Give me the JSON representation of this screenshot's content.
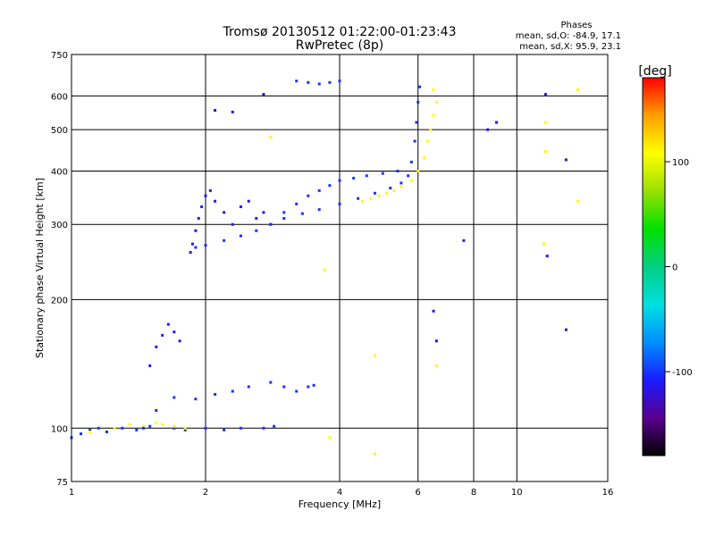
{
  "chart_data": {
    "type": "scatter",
    "title": "Tromsø 20130512 01:22:00-01:23:43",
    "subtitle": "RwPretec (8p)",
    "xlabel": "Frequency [MHz]",
    "ylabel": "Stationary phase Virtual Height [km]",
    "x_scale": "log",
    "y_scale": "log",
    "xlim": [
      1,
      16
    ],
    "ylim": [
      75,
      750
    ],
    "x_ticks": [
      1,
      2,
      4,
      6,
      8,
      10,
      16
    ],
    "x_tick_labels": [
      "1",
      "2",
      "4",
      "6",
      "8",
      "10",
      "16"
    ],
    "y_ticks": [
      75,
      100,
      200,
      300,
      400,
      500,
      600,
      750
    ],
    "y_tick_labels": [
      "75",
      "100",
      "200",
      "300",
      "400",
      "500",
      "600",
      "750"
    ],
    "grid": true,
    "phase_stats": {
      "heading": "Phases",
      "o_line": "mean, sd,O: -84.9, 17.1",
      "x_line": "mean, sd,X:  95.9, 23.1"
    },
    "colorbar": {
      "label": "[deg]",
      "range": [
        -180,
        180
      ],
      "ticks": [
        100,
        0,
        -100
      ],
      "tick_labels": [
        "100",
        "0",
        "-100"
      ],
      "colormap": [
        "#000000",
        "#5a0090",
        "#1a1aff",
        "#0090ff",
        "#00e0e0",
        "#00d080",
        "#00e000",
        "#9ae000",
        "#ffff00",
        "#ffa000",
        "#ff0000"
      ]
    },
    "traces": [
      {
        "name": "",
        "phase": -100,
        "points": [
          [
            1.0,
            95
          ],
          [
            1.05,
            97
          ],
          [
            1.1,
            99
          ],
          [
            1.15,
            100
          ],
          [
            1.2,
            98
          ],
          [
            1.3,
            100
          ],
          [
            1.4,
            99
          ],
          [
            1.5,
            101
          ],
          [
            1.7,
            100
          ],
          [
            1.8,
            99
          ],
          [
            2.0,
            100
          ],
          [
            2.2,
            99
          ],
          [
            2.4,
            100
          ],
          [
            2.7,
            100
          ],
          [
            2.85,
            101
          ]
        ]
      },
      {
        "name": "",
        "phase": 110,
        "points": [
          [
            1.1,
            98
          ],
          [
            1.25,
            100
          ],
          [
            1.35,
            102
          ],
          [
            1.45,
            101
          ],
          [
            1.55,
            103
          ],
          [
            1.6,
            102
          ],
          [
            1.7,
            101
          ],
          [
            1.8,
            100
          ]
        ]
      },
      {
        "name": "",
        "phase": -110,
        "points": [
          [
            1.5,
            140
          ],
          [
            1.55,
            155
          ],
          [
            1.6,
            165
          ],
          [
            1.65,
            175
          ],
          [
            1.7,
            168
          ],
          [
            1.75,
            160
          ]
        ]
      },
      {
        "name": "",
        "phase": -100,
        "points": [
          [
            1.45,
            100
          ],
          [
            1.55,
            110
          ],
          [
            1.7,
            118
          ],
          [
            1.9,
            117
          ],
          [
            2.1,
            120
          ],
          [
            2.3,
            122
          ],
          [
            2.5,
            125
          ],
          [
            2.8,
            128
          ],
          [
            3.0,
            125
          ],
          [
            3.2,
            122
          ],
          [
            3.4,
            125
          ],
          [
            3.5,
            126
          ]
        ]
      },
      {
        "name": "",
        "phase": -110,
        "points": [
          [
            1.85,
            258
          ],
          [
            1.87,
            270
          ],
          [
            1.9,
            290
          ],
          [
            1.93,
            310
          ],
          [
            1.96,
            330
          ],
          [
            2.0,
            350
          ],
          [
            2.05,
            360
          ],
          [
            2.1,
            340
          ],
          [
            2.2,
            320
          ],
          [
            2.3,
            300
          ],
          [
            2.4,
            330
          ],
          [
            2.5,
            340
          ],
          [
            2.6,
            310
          ],
          [
            2.7,
            320
          ],
          [
            2.8,
            300
          ]
        ]
      },
      {
        "name": "",
        "phase": -100,
        "points": [
          [
            1.9,
            265
          ],
          [
            2.0,
            268
          ],
          [
            2.2,
            275
          ],
          [
            2.4,
            282
          ],
          [
            2.6,
            290
          ],
          [
            2.8,
            300
          ],
          [
            3.0,
            310
          ],
          [
            3.3,
            318
          ],
          [
            3.6,
            325
          ],
          [
            4.0,
            335
          ],
          [
            4.4,
            345
          ],
          [
            4.8,
            355
          ],
          [
            5.2,
            365
          ],
          [
            5.5,
            375
          ],
          [
            5.7,
            390
          ],
          [
            5.8,
            420
          ],
          [
            5.9,
            470
          ],
          [
            5.95,
            520
          ],
          [
            6.0,
            580
          ],
          [
            6.05,
            630
          ]
        ]
      },
      {
        "name": "",
        "phase": -100,
        "points": [
          [
            3.0,
            320
          ],
          [
            3.2,
            335
          ],
          [
            3.4,
            350
          ],
          [
            3.6,
            360
          ],
          [
            3.8,
            370
          ],
          [
            4.0,
            380
          ],
          [
            4.3,
            385
          ],
          [
            4.6,
            390
          ],
          [
            5.0,
            395
          ],
          [
            5.4,
            400
          ]
        ]
      },
      {
        "name": "",
        "phase": 110,
        "points": [
          [
            4.5,
            340
          ],
          [
            4.7,
            345
          ],
          [
            4.9,
            350
          ],
          [
            5.1,
            355
          ],
          [
            5.3,
            360
          ],
          [
            5.5,
            368
          ],
          [
            5.8,
            380
          ],
          [
            6.0,
            400
          ],
          [
            6.2,
            430
          ],
          [
            6.3,
            470
          ],
          [
            6.4,
            500
          ],
          [
            6.5,
            540
          ],
          [
            6.6,
            580
          ],
          [
            6.5,
            620
          ]
        ]
      },
      {
        "name": "",
        "phase": -100,
        "points": [
          [
            3.2,
            650
          ],
          [
            3.4,
            645
          ],
          [
            3.6,
            640
          ],
          [
            3.8,
            645
          ],
          [
            4.0,
            650
          ]
        ]
      },
      {
        "name": "",
        "phase": -120,
        "points": [
          [
            2.1,
            555
          ],
          [
            2.3,
            550
          ],
          [
            2.7,
            605
          ],
          [
            6.5,
            188
          ],
          [
            6.6,
            160
          ],
          [
            11.6,
            605
          ],
          [
            12.9,
            170
          ],
          [
            9.0,
            520
          ],
          [
            8.6,
            500
          ],
          [
            7.6,
            275
          ],
          [
            11.7,
            253
          ],
          [
            12.9,
            425
          ]
        ]
      },
      {
        "name": "",
        "phase": 110,
        "points": [
          [
            2.8,
            480
          ],
          [
            3.7,
            235
          ],
          [
            3.8,
            95
          ],
          [
            4.8,
            87
          ],
          [
            4.8,
            148
          ],
          [
            6.6,
            140
          ],
          [
            11.6,
            520
          ],
          [
            11.6,
            445
          ],
          [
            11.5,
            270
          ],
          [
            13.7,
            620
          ],
          [
            13.7,
            340
          ]
        ]
      }
    ]
  }
}
